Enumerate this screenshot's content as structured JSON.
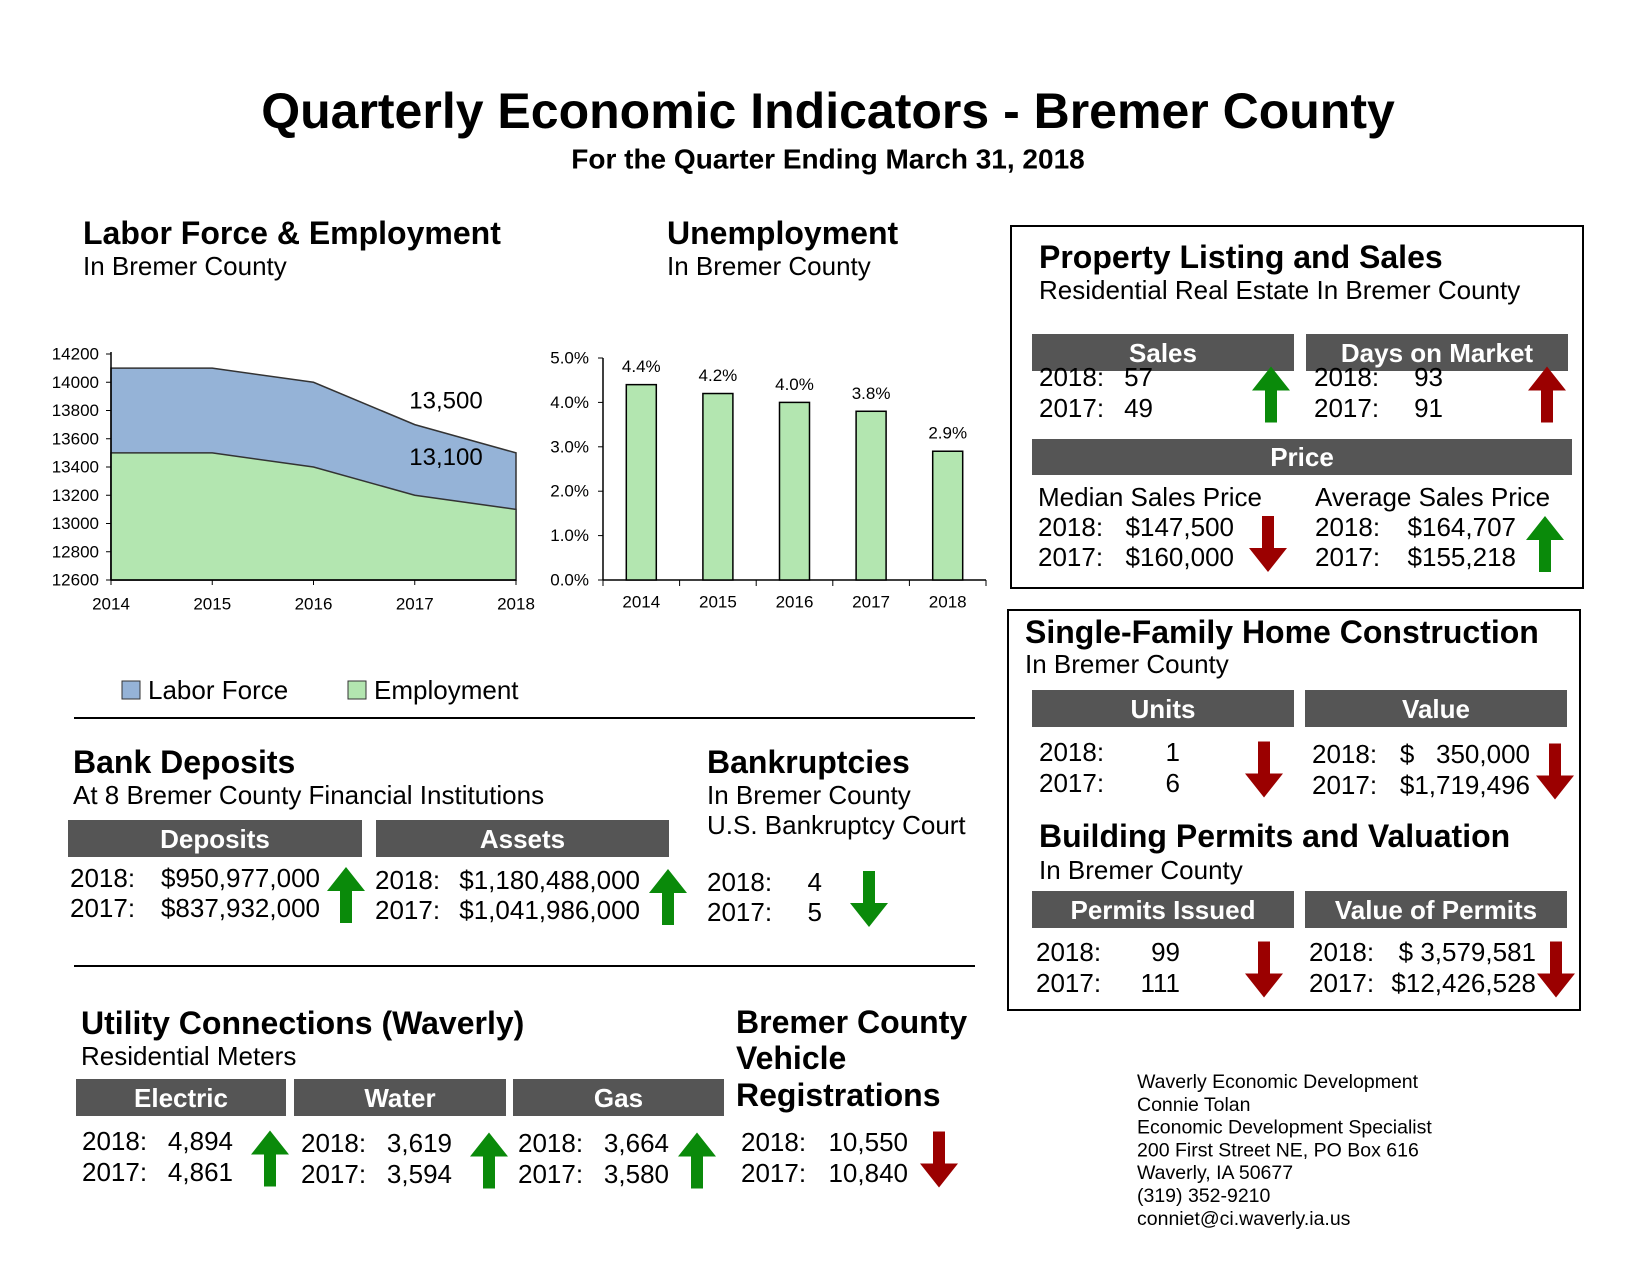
{
  "header": {
    "title": "Quarterly Economic Indicators - Bremer County",
    "subtitle": "For the Quarter Ending March 31, 2018"
  },
  "chart_data": [
    {
      "type": "area",
      "title": "Labor Force & Employment",
      "subtitle": "In Bremer County",
      "x": [
        2014,
        2015,
        2016,
        2017,
        2018
      ],
      "xlim": [
        2014,
        2018
      ],
      "xticks": [
        2014,
        2015,
        2016,
        2017,
        2018
      ],
      "ylim": [
        12600,
        14200
      ],
      "yticks": [
        12600,
        12800,
        13000,
        13200,
        13400,
        13600,
        13800,
        14000,
        14200
      ],
      "legend": "bottom",
      "series": [
        {
          "name": "Labor Force",
          "color": "#95b3d7",
          "values": [
            14100,
            14100,
            14000,
            13700,
            13500
          ],
          "value_labels": [
            null,
            null,
            null,
            null,
            "13,500"
          ]
        },
        {
          "name": "Employment",
          "color": "#b3e6b0",
          "values": [
            13500,
            13500,
            13400,
            13200,
            13100
          ],
          "value_labels": [
            null,
            null,
            null,
            null,
            "13,100"
          ]
        }
      ]
    },
    {
      "type": "bar",
      "title": "Unemployment",
      "subtitle": "In Bremer County",
      "categories": [
        "2014",
        "2015",
        "2016",
        "2017",
        "2018"
      ],
      "values": [
        4.4,
        4.2,
        4.0,
        3.8,
        2.9
      ],
      "value_labels": [
        "4.4%",
        "4.2%",
        "4.0%",
        "3.8%",
        "2.9%"
      ],
      "color": "#b3e6b0",
      "ylim": [
        0,
        5
      ],
      "yticks": [
        {
          "value": 0,
          "label": "0.0%"
        },
        {
          "value": 1,
          "label": "1.0%"
        },
        {
          "value": 2,
          "label": "2.0%"
        },
        {
          "value": 3,
          "label": "3.0%"
        },
        {
          "value": 4,
          "label": "4.0%"
        },
        {
          "value": 5,
          "label": "5.0%"
        }
      ]
    }
  ],
  "property": {
    "title": "Property Listing and Sales",
    "subtitle": "Residential Real Estate In Bremer County",
    "price_heading": "Price",
    "blocks": [
      {
        "heading": "Sales",
        "rows": [
          {
            "label": "2018:",
            "value": "57"
          },
          {
            "label": "2017:",
            "value": "49"
          }
        ],
        "arrow": {
          "direction": "up",
          "color": "#0a8a0a"
        }
      },
      {
        "heading": "Days on Market",
        "rows": [
          {
            "label": "2018:",
            "value": "93"
          },
          {
            "label": "2017:",
            "value": "91"
          }
        ],
        "arrow": {
          "direction": "up",
          "color": "#9b0000"
        }
      },
      {
        "caption": "Median Sales Price",
        "rows": [
          {
            "label": "2018:",
            "value": "$147,500"
          },
          {
            "label": "2017:",
            "value": "$160,000"
          }
        ],
        "arrow": {
          "direction": "down",
          "color": "#9b0000"
        }
      },
      {
        "caption": "Average Sales Price",
        "rows": [
          {
            "label": "2018:",
            "value": "$164,707"
          },
          {
            "label": "2017:",
            "value": "$155,218"
          }
        ],
        "arrow": {
          "direction": "up",
          "color": "#0a8a0a"
        }
      }
    ]
  },
  "construction": {
    "title": "Single-Family Home Construction",
    "subtitle": "In Bremer County",
    "blocks": [
      {
        "heading": "Units",
        "rows": [
          {
            "label": "2018:",
            "value": "1"
          },
          {
            "label": "2017:",
            "value": "6"
          }
        ],
        "arrow": {
          "direction": "down",
          "color": "#9b0000"
        }
      },
      {
        "heading": "Value",
        "rows": [
          {
            "label": "2018:",
            "value": "$   350,000"
          },
          {
            "label": "2017:",
            "value": "$1,719,496"
          }
        ],
        "arrow": {
          "direction": "down",
          "color": "#9b0000"
        }
      }
    ]
  },
  "permits": {
    "title": "Building Permits and Valuation",
    "subtitle": "In Bremer County",
    "blocks": [
      {
        "heading": "Permits Issued",
        "rows": [
          {
            "label": "2018:",
            "value": "99"
          },
          {
            "label": "2017:",
            "value": "111"
          }
        ],
        "arrow": {
          "direction": "down",
          "color": "#9b0000"
        }
      },
      {
        "heading": "Value of Permits",
        "rows": [
          {
            "label": "2018:",
            "value": "$ 3,579,581"
          },
          {
            "label": "2017:",
            "value": "$12,426,528"
          }
        ],
        "arrow": {
          "direction": "down",
          "color": "#9b0000"
        }
      }
    ]
  },
  "bank_deposits": {
    "title": "Bank Deposits",
    "subtitle": "At 8 Bremer County Financial Institutions",
    "blocks": [
      {
        "heading": "Deposits",
        "rows": [
          {
            "label": "2018:",
            "value": "$950,977,000"
          },
          {
            "label": "2017:",
            "value": "$837,932,000"
          }
        ],
        "arrow": {
          "direction": "up",
          "color": "#0a8a0a"
        }
      },
      {
        "heading": "Assets",
        "rows": [
          {
            "label": "2018:",
            "value": "$1,180,488,000"
          },
          {
            "label": "2017:",
            "value": "$1,041,986,000"
          }
        ],
        "arrow": {
          "direction": "up",
          "color": "#0a8a0a"
        }
      }
    ]
  },
  "bankruptcies": {
    "title": "Bankruptcies",
    "subtitle": [
      "In Bremer County",
      "U.S. Bankruptcy Court"
    ],
    "blocks": [
      {
        "rows": [
          {
            "label": "2018:",
            "value": "4"
          },
          {
            "label": "2017:",
            "value": "5"
          }
        ],
        "arrow": {
          "direction": "down",
          "color": "#0a8a0a"
        }
      }
    ]
  },
  "utility_connections": {
    "title": "Utility Connections (Waverly)",
    "subtitle": "Residential Meters",
    "blocks": [
      {
        "heading": "Electric",
        "rows": [
          {
            "label": "2018:",
            "value": "4,894"
          },
          {
            "label": "2017:",
            "value": "4,861"
          }
        ],
        "arrow": {
          "direction": "up",
          "color": "#0a8a0a"
        }
      },
      {
        "heading": "Water",
        "rows": [
          {
            "label": "2018:",
            "value": "3,619"
          },
          {
            "label": "2017:",
            "value": "3,594"
          }
        ],
        "arrow": {
          "direction": "up",
          "color": "#0a8a0a"
        }
      },
      {
        "heading": "Gas",
        "rows": [
          {
            "label": "2018:",
            "value": "3,664"
          },
          {
            "label": "2017:",
            "value": "3,580"
          }
        ],
        "arrow": {
          "direction": "up",
          "color": "#0a8a0a"
        }
      }
    ]
  },
  "vehicle_registrations": {
    "title": [
      "Bremer County",
      "Vehicle",
      "Registrations"
    ],
    "blocks": [
      {
        "rows": [
          {
            "label": "2018:",
            "value": "10,550"
          },
          {
            "label": "2017:",
            "value": "10,840"
          }
        ],
        "arrow": {
          "direction": "down",
          "color": "#9b0000"
        }
      }
    ]
  },
  "contact": [
    "Waverly Economic Development",
    "Connie Tolan",
    "Economic Development Specialist",
    "200 First Street NE, PO Box 616",
    "Waverly, IA 50677",
    "(319) 352-9210",
    "conniet@ci.waverly.ia.us"
  ]
}
